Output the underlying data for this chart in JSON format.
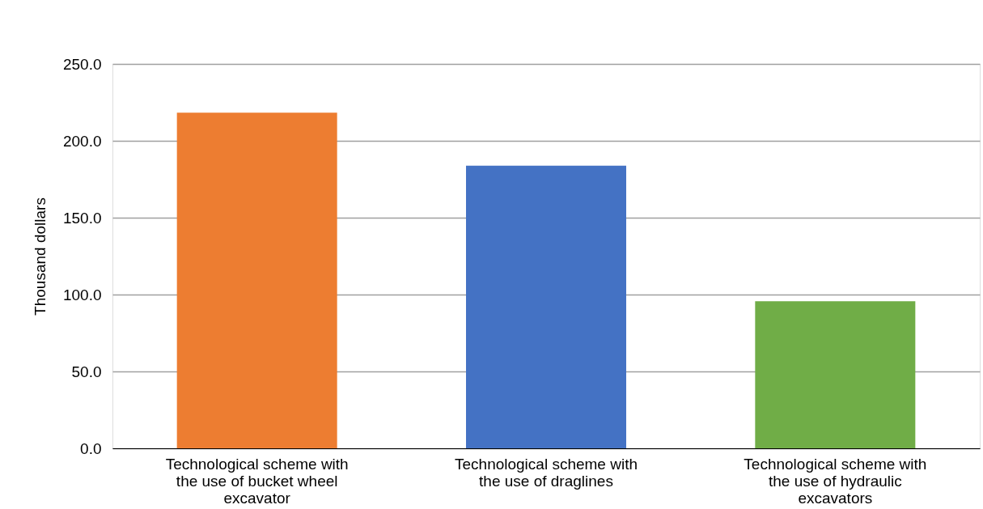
{
  "chart_data": {
    "type": "bar",
    "ylabel": "Thousand dollars",
    "categories": [
      "Technological scheme with the use of bucket wheel excavator",
      "Technological scheme with the use of draglines",
      "Technological scheme with the use of hydraulic excavators"
    ],
    "values": [
      218.3,
      183.8,
      95.6
    ],
    "colors": [
      "#ed7d31",
      "#4472c4",
      "#70ad47"
    ],
    "ylim": [
      0,
      250
    ],
    "yticks": [
      {
        "value": 0,
        "label": "0.0"
      },
      {
        "value": 50,
        "label": "50.0"
      },
      {
        "value": 100,
        "label": "100.0"
      },
      {
        "value": 150,
        "label": "150.0"
      },
      {
        "value": 200,
        "label": "200.0"
      },
      {
        "value": 250,
        "label": "250.0"
      }
    ],
    "grid": "y"
  }
}
